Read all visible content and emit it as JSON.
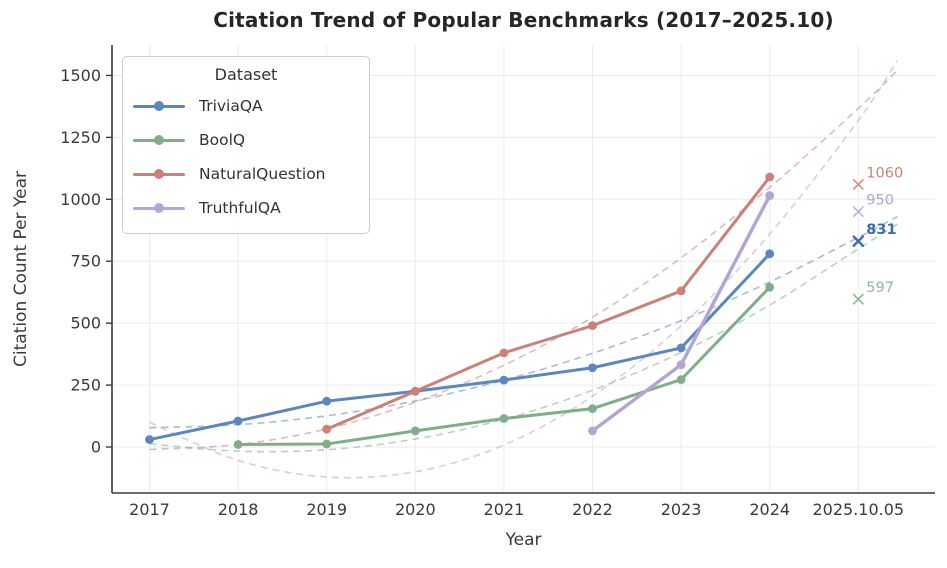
{
  "header": {
    "title": "Citation Trend of Popular Benchmarks (2017–2025.10)"
  },
  "chart_data": {
    "type": "line",
    "title": "Citation Trend of Popular Benchmarks (2017–2025.10)",
    "xlabel": "Year",
    "ylabel": "Citation Count Per Year",
    "legend_title": "Dataset",
    "legend_position": "upper left",
    "grid": true,
    "x_tick_labels": [
      "2017",
      "2018",
      "2019",
      "2020",
      "2021",
      "2022",
      "2023",
      "2024",
      "2025.10.05"
    ],
    "y_ticks": [
      0,
      250,
      500,
      750,
      1000,
      1250,
      1500
    ],
    "ylim": [
      -190,
      1620
    ],
    "colors": {
      "grid": "#ebebeb",
      "spine": "#3b3b3b",
      "tick_text": "#3a3a3a",
      "title_text": "#262626"
    },
    "series": [
      {
        "name": "TriviaQA",
        "color": "#5b86c0",
        "annotation_color": "#3e6cac",
        "line_width": 3,
        "x": [
          0,
          1,
          2,
          3,
          4,
          5,
          6,
          7
        ],
        "values": [
          30,
          105,
          185,
          225,
          270,
          320,
          400,
          780
        ],
        "annotation": {
          "x": 8,
          "value": 831,
          "label": "831",
          "bold": true
        },
        "trend": {
          "x": [
            0,
            1,
            2,
            3,
            4,
            5,
            6,
            7,
            8,
            8.44
          ],
          "values": [
            78,
            90,
            126,
            186,
            270,
            378,
            510,
            666,
            846,
            930
          ]
        }
      },
      {
        "name": "BoolQ",
        "color": "#7fae89",
        "annotation_color": "#90b795",
        "line_width": 3,
        "x": [
          1,
          2,
          3,
          4,
          5,
          6,
          7
        ],
        "values": [
          10,
          12,
          65,
          115,
          155,
          272,
          645
        ],
        "annotation": {
          "x": 8,
          "value": 597,
          "label": "597",
          "bold": false
        },
        "trend": {
          "x": [
            0,
            1,
            2,
            3,
            4,
            5,
            6,
            7,
            8,
            8.44
          ],
          "values": [
            13,
            -17,
            -11,
            32,
            112,
            229,
            382,
            573,
            800,
            900
          ]
        }
      },
      {
        "name": "NaturalQuestion",
        "color": "#cc8077",
        "annotation_color": "#c98377",
        "line_width": 3,
        "x": [
          2,
          3,
          4,
          5,
          6,
          7
        ],
        "values": [
          72,
          225,
          380,
          490,
          630,
          1090
        ],
        "annotation": {
          "x": 8,
          "value": 1060,
          "label": "1060",
          "bold": false
        },
        "trend": {
          "x": [
            0,
            1,
            2,
            3,
            4,
            5,
            6,
            7,
            8,
            8.44
          ],
          "values": [
            -10,
            10,
            73,
            181,
            330,
            524,
            764,
            1048,
            1367,
            1520
          ]
        }
      },
      {
        "name": "TruthfulQA",
        "color": "#b5a5d7",
        "annotation_color": "#b2a2d5",
        "line_width": 3.5,
        "x": [
          5,
          6,
          7
        ],
        "values": [
          65,
          332,
          1015
        ],
        "annotation": {
          "x": 8,
          "value": 950,
          "label": "950",
          "bold": false
        },
        "trend": {
          "x": [
            0,
            1,
            2,
            3,
            4,
            5,
            6,
            7,
            8,
            8.44
          ],
          "values": [
            100,
            -54,
            -121,
            -100,
            8,
            205,
            489,
            860,
            1318,
            1560
          ]
        }
      }
    ]
  }
}
